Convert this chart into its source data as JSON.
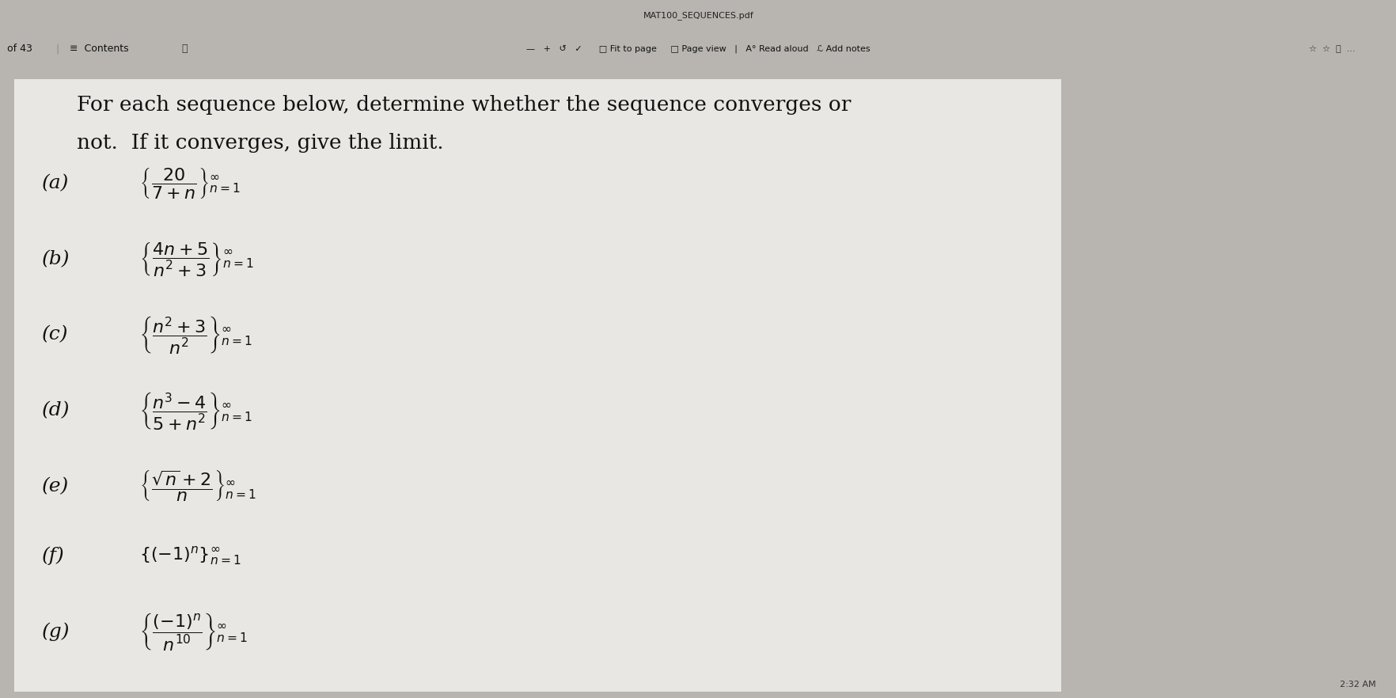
{
  "bg_outer": "#b8b5b0",
  "bg_toolbar": "#e0deda",
  "bg_content": "#e8e6e2",
  "bg_page": "#f0efec",
  "title_line1": "For each sequence below, determine whether the sequence converges or",
  "title_line2": "not.  If it converges, give the limit.",
  "labels": [
    "(a)",
    "(b)",
    "(c)",
    "(d)",
    "(e)",
    "(f)",
    "(g)"
  ],
  "parts_latex": [
    "$\\left\\{\\dfrac{20}{7+n}\\right\\}_{n=1}^{\\infty}$",
    "$\\left\\{\\dfrac{4n+5}{n^2+3}\\right\\}_{n=1}^{\\infty}$",
    "$\\left\\{\\dfrac{n^2+3}{n^2}\\right\\}_{n=1}^{\\infty}$",
    "$\\left\\{\\dfrac{n^3-4}{5+n^2}\\right\\}_{n=1}^{\\infty}$",
    "$\\left\\{\\dfrac{\\sqrt{n}+2}{n}\\right\\}_{n=1}^{\\infty}$",
    "$\\{(-1)^n\\}_{n=1}^{\\infty}$",
    "$\\left\\{\\dfrac{(-1)^n}{n^{10}}\\right\\}_{n=1}^{\\infty}$"
  ],
  "time_text": "2:32 AM",
  "url_text": "MAT100_SEQUENCES.pdf",
  "toolbar_left": "of 43   ≡ Contents   🔍",
  "toolbar_mid": "—   +   ↺   ✓   □ Fit to page    □ Page view   |   A° Read aloud   ℒ Add notes"
}
